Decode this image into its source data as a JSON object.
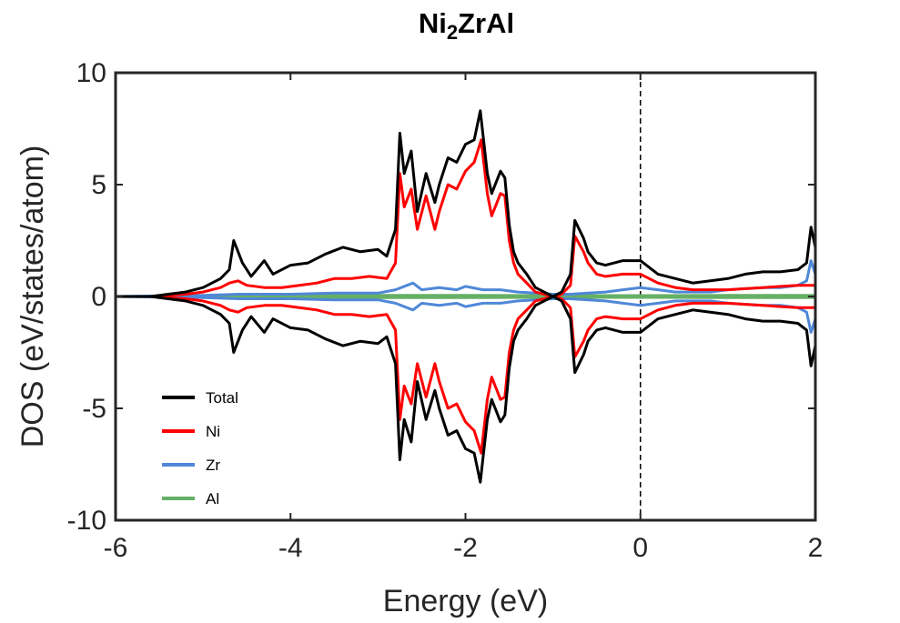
{
  "chart_data": {
    "type": "line",
    "title": {
      "main": "Ni",
      "sub": "2",
      "rest": "ZrAl"
    },
    "xlabel": "Energy (eV)",
    "ylabel": "DOS (eV/states/atom)",
    "xlim": [
      -6,
      2
    ],
    "ylim": [
      -10,
      10
    ],
    "xticks": [
      -6,
      -4,
      -2,
      0,
      2
    ],
    "xtick_labels": [
      "-6",
      "-4",
      "-2",
      "0",
      "2"
    ],
    "yticks": [
      -10,
      -5,
      0,
      5,
      10
    ],
    "ytick_labels": [
      "-10",
      "-5",
      "0",
      "5",
      "10"
    ],
    "grid": false,
    "fermi_level": 0,
    "legend_position": "bottom-left",
    "mirrored_spin": true,
    "series": [
      {
        "name": "Total",
        "color": "#000000",
        "x": [
          -6.0,
          -5.6,
          -5.4,
          -5.2,
          -5.0,
          -4.8,
          -4.7,
          -4.65,
          -4.55,
          -4.45,
          -4.3,
          -4.2,
          -4.0,
          -3.8,
          -3.6,
          -3.4,
          -3.2,
          -3.0,
          -2.9,
          -2.8,
          -2.75,
          -2.7,
          -2.62,
          -2.55,
          -2.45,
          -2.35,
          -2.3,
          -2.2,
          -2.1,
          -2.0,
          -1.9,
          -1.83,
          -1.75,
          -1.7,
          -1.6,
          -1.55,
          -1.5,
          -1.45,
          -1.4,
          -1.3,
          -1.2,
          -1.1,
          -1.0,
          -0.9,
          -0.8,
          -0.75,
          -0.65,
          -0.6,
          -0.5,
          -0.4,
          -0.2,
          0.0,
          0.2,
          0.4,
          0.6,
          0.8,
          1.0,
          1.2,
          1.4,
          1.6,
          1.8,
          1.9,
          1.95,
          2.0
        ],
        "y": [
          0.0,
          0.0,
          0.1,
          0.2,
          0.4,
          0.8,
          1.2,
          2.5,
          1.5,
          0.9,
          1.6,
          1.0,
          1.4,
          1.5,
          1.9,
          2.2,
          2.0,
          2.1,
          1.8,
          3.0,
          7.3,
          5.5,
          6.5,
          3.8,
          5.5,
          4.2,
          5.0,
          6.2,
          6.0,
          6.8,
          7.0,
          8.3,
          5.5,
          4.6,
          5.6,
          5.3,
          3.2,
          2.0,
          1.5,
          1.0,
          0.4,
          0.2,
          0.0,
          0.2,
          1.0,
          3.4,
          2.6,
          2.0,
          1.5,
          1.4,
          1.6,
          1.6,
          1.0,
          0.8,
          0.6,
          0.7,
          0.8,
          1.0,
          1.1,
          1.1,
          1.2,
          1.5,
          3.1,
          2.2
        ]
      },
      {
        "name": "Ni",
        "color": "#ff0000",
        "x": [
          -6.0,
          -5.6,
          -5.4,
          -5.2,
          -5.0,
          -4.8,
          -4.7,
          -4.6,
          -4.5,
          -4.3,
          -4.1,
          -3.9,
          -3.7,
          -3.5,
          -3.3,
          -3.1,
          -2.9,
          -2.8,
          -2.75,
          -2.7,
          -2.62,
          -2.55,
          -2.45,
          -2.35,
          -2.3,
          -2.2,
          -2.1,
          -2.0,
          -1.9,
          -1.82,
          -1.75,
          -1.7,
          -1.6,
          -1.55,
          -1.5,
          -1.45,
          -1.4,
          -1.3,
          -1.2,
          -1.1,
          -1.0,
          -0.9,
          -0.8,
          -0.75,
          -0.65,
          -0.6,
          -0.5,
          -0.4,
          -0.2,
          0.0,
          0.2,
          0.4,
          0.6,
          0.8,
          1.0,
          1.2,
          1.4,
          1.6,
          1.8,
          2.0
        ],
        "y": [
          0.0,
          0.0,
          0.05,
          0.1,
          0.2,
          0.4,
          0.6,
          0.7,
          0.5,
          0.4,
          0.4,
          0.5,
          0.6,
          0.8,
          0.8,
          0.9,
          0.8,
          1.5,
          5.5,
          4.0,
          4.8,
          3.0,
          4.5,
          3.0,
          3.8,
          5.0,
          4.8,
          5.6,
          6.0,
          7.0,
          4.6,
          3.6,
          4.6,
          4.5,
          2.5,
          1.5,
          1.0,
          0.6,
          0.2,
          0.1,
          0.0,
          0.1,
          0.5,
          2.7,
          2.0,
          1.5,
          1.0,
          0.9,
          1.0,
          1.0,
          0.6,
          0.4,
          0.3,
          0.3,
          0.3,
          0.35,
          0.4,
          0.45,
          0.5,
          0.5
        ]
      },
      {
        "name": "Zr",
        "color": "#4f88d8",
        "x": [
          -6.0,
          -5.0,
          -4.6,
          -4.0,
          -3.5,
          -3.0,
          -2.8,
          -2.6,
          -2.5,
          -2.3,
          -2.1,
          -2.0,
          -1.8,
          -1.6,
          -1.4,
          -1.2,
          -1.0,
          -0.8,
          -0.6,
          -0.4,
          -0.2,
          0.0,
          0.2,
          0.4,
          0.6,
          0.8,
          1.0,
          1.2,
          1.4,
          1.6,
          1.8,
          1.9,
          1.95,
          2.0
        ],
        "y": [
          0.0,
          0.05,
          0.1,
          0.1,
          0.15,
          0.15,
          0.3,
          0.6,
          0.3,
          0.4,
          0.3,
          0.45,
          0.3,
          0.3,
          0.2,
          0.15,
          0.1,
          0.1,
          0.15,
          0.2,
          0.3,
          0.4,
          0.3,
          0.2,
          0.2,
          0.2,
          0.3,
          0.35,
          0.4,
          0.4,
          0.5,
          0.7,
          1.6,
          1.0
        ]
      },
      {
        "name": "Al",
        "color": "#66b066",
        "x": [
          -6.0,
          -5.0,
          -4.0,
          -3.0,
          -2.0,
          -1.0,
          0.0,
          1.0,
          2.0
        ],
        "y": [
          0.0,
          0.03,
          0.04,
          0.05,
          0.05,
          0.04,
          0.04,
          0.05,
          0.05
        ]
      }
    ]
  }
}
